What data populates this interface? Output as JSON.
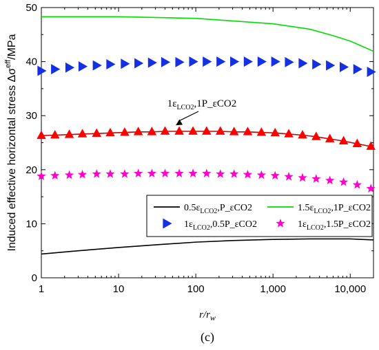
{
  "chart_data": {
    "type": "line",
    "x_scale": "log",
    "xlim": [
      1,
      20000
    ],
    "ylim": [
      0,
      50
    ],
    "x_ticks": [
      1,
      10,
      100,
      1000,
      10000
    ],
    "x_tick_labels": [
      "1",
      "10",
      "100",
      "1,000",
      "10,000"
    ],
    "y_ticks": [
      0,
      10,
      20,
      30,
      40,
      50
    ],
    "y_tick_labels": [
      "0",
      "10",
      "20",
      "30",
      "40",
      "50"
    ],
    "xlabel": {
      "main": "r/r",
      "sub": "w"
    },
    "ylabel": {
      "main": "Induced effective horizontal stress Δσ",
      "sup": "eff",
      "tail": "/MPa"
    },
    "panel_label": "(c)",
    "annotation": {
      "text": "1ε_LCO2,1P_εCO2",
      "points_to": {
        "x": 55,
        "y": 27.2
      }
    },
    "legend": {
      "placement": "bottom-right",
      "columns": 2
    },
    "series": [
      {
        "name": "0.5ε_LCO2,P_εCO2",
        "style": "line",
        "color": "#000000",
        "x": [
          1,
          3,
          10,
          30,
          100,
          300,
          1000,
          3000,
          10000,
          20000
        ],
        "y": [
          4.4,
          5.0,
          5.6,
          6.1,
          6.6,
          6.9,
          7.1,
          7.2,
          7.2,
          7.0
        ]
      },
      {
        "name": "1.5ε_LCO2,1P_εCO2",
        "style": "line",
        "color": "#00dd00",
        "x": [
          1,
          10,
          100,
          1000,
          3000,
          6000,
          10000,
          15000,
          20000
        ],
        "y": [
          48.3,
          48.3,
          48.0,
          47.0,
          46.0,
          44.8,
          43.8,
          42.7,
          41.9
        ]
      },
      {
        "name": "1ε_LCO2,0.5P_εCO2",
        "style": "marker",
        "marker": "triangle-right",
        "color": "#1530e0",
        "x": [
          1,
          1.5,
          2.3,
          3.4,
          5.2,
          7.8,
          12,
          18,
          27,
          40,
          61,
          92,
          138,
          208,
          313,
          470,
          708,
          1065,
          1600,
          2410,
          3620,
          5450,
          8200,
          12300,
          18500
        ],
        "y": [
          38.3,
          38.6,
          38.9,
          39.1,
          39.3,
          39.5,
          39.6,
          39.7,
          39.8,
          39.9,
          39.9,
          40.0,
          40.0,
          40.0,
          40.0,
          40.0,
          40.0,
          40.0,
          39.9,
          39.7,
          39.5,
          39.3,
          39.0,
          38.6,
          38.1
        ]
      },
      {
        "name": "1ε_LCO2,1.5P_εCO2",
        "style": "marker",
        "marker": "star",
        "color": "#ff00cc",
        "x": [
          1,
          1.5,
          2.3,
          3.4,
          5.2,
          7.8,
          12,
          18,
          27,
          40,
          61,
          92,
          138,
          208,
          313,
          470,
          708,
          1065,
          1600,
          2410,
          3620,
          5450,
          8200,
          12300,
          18500
        ],
        "y": [
          18.8,
          18.9,
          19.0,
          19.1,
          19.2,
          19.2,
          19.2,
          19.3,
          19.3,
          19.3,
          19.3,
          19.3,
          19.3,
          19.2,
          19.2,
          19.1,
          19.0,
          18.9,
          18.7,
          18.5,
          18.3,
          18.0,
          17.7,
          17.2,
          16.5
        ]
      },
      {
        "name": "1ε_LCO2,1P_εCO2",
        "style": "line+marker",
        "marker": "triangle-up",
        "color": "#ff0000",
        "line_color": "#cc0000",
        "in_legend": false,
        "x": [
          1,
          1.5,
          2.3,
          3.4,
          5.2,
          7.8,
          12,
          18,
          27,
          40,
          61,
          92,
          138,
          208,
          313,
          470,
          708,
          1065,
          1600,
          2410,
          3620,
          5450,
          8200,
          12300,
          18500
        ],
        "y": [
          26.3,
          26.4,
          26.5,
          26.6,
          26.7,
          26.8,
          26.9,
          27.0,
          27.0,
          27.1,
          27.1,
          27.1,
          27.1,
          27.1,
          27.0,
          27.0,
          26.9,
          26.8,
          26.6,
          26.4,
          26.1,
          25.7,
          25.3,
          24.8,
          24.3
        ]
      }
    ]
  }
}
